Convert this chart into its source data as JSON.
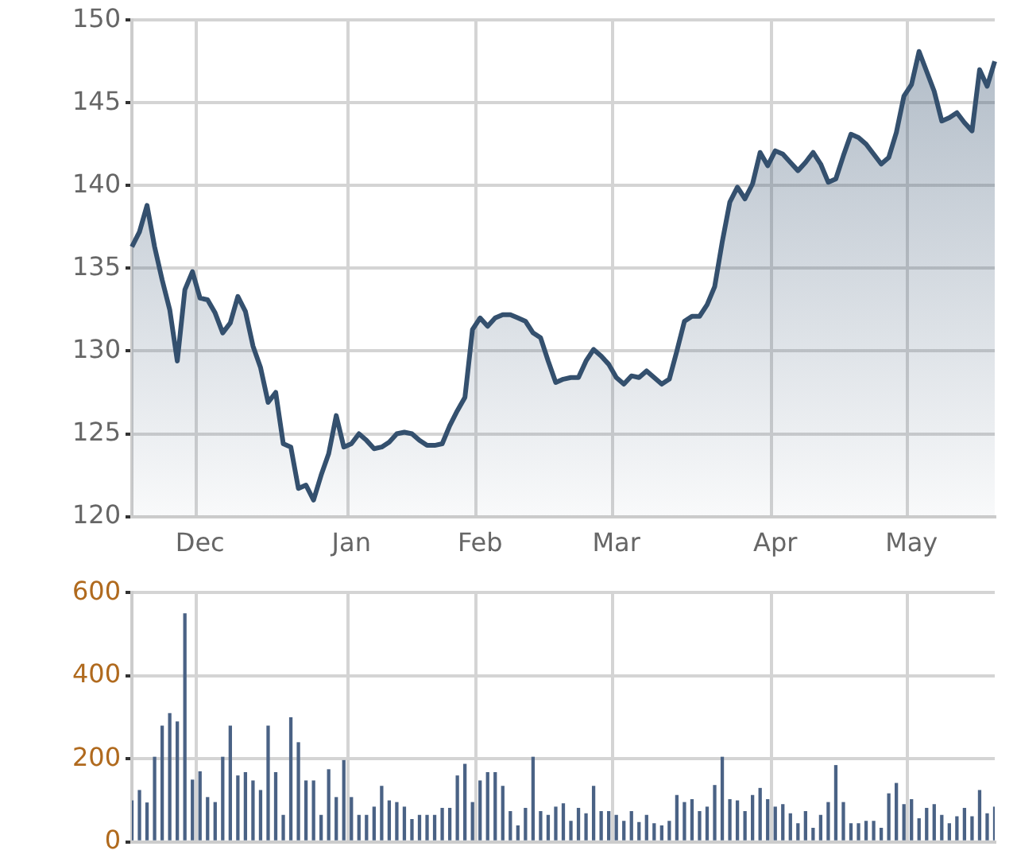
{
  "chart_data": [
    {
      "type": "area",
      "categories": [
        null,
        null,
        null,
        null,
        null,
        null,
        null,
        null,
        null,
        "Dec",
        null,
        null,
        null,
        null,
        null,
        null,
        null,
        null,
        null,
        null,
        null,
        null,
        null,
        null,
        null,
        null,
        null,
        null,
        null,
        "Jan",
        null,
        null,
        null,
        null,
        null,
        null,
        null,
        null,
        null,
        null,
        null,
        null,
        null,
        null,
        null,
        null,
        "Feb",
        null,
        null,
        null,
        null,
        null,
        null,
        null,
        null,
        null,
        null,
        null,
        null,
        null,
        null,
        null,
        null,
        null,
        "Mar",
        null,
        null,
        null,
        null,
        null,
        null,
        null,
        null,
        null,
        null,
        null,
        null,
        null,
        null,
        null,
        null,
        null,
        null,
        null,
        null,
        "Apr",
        null,
        null,
        null,
        null,
        null,
        null,
        null,
        null,
        null,
        null,
        null,
        null,
        null,
        null,
        null,
        null,
        null,
        "May",
        null,
        null,
        null,
        null,
        null,
        null,
        null,
        null,
        null,
        null,
        null
      ],
      "series": [
        {
          "color": "#34506e",
          "values": [
            136.3,
            137.2,
            138.8,
            136.3,
            134.3,
            132.5,
            129.4,
            133.7,
            134.8,
            133.2,
            133.1,
            132.3,
            131.1,
            131.7,
            133.3,
            132.4,
            130.3,
            129.0,
            126.9,
            127.5,
            124.4,
            124.2,
            121.7,
            121.9,
            121.0,
            122.5,
            123.8,
            126.1,
            124.2,
            124.4,
            125.0,
            124.6,
            124.1,
            124.2,
            124.5,
            125.0,
            125.1,
            125.0,
            124.6,
            124.3,
            124.3,
            124.4,
            125.5,
            126.4,
            127.2,
            131.3,
            132.0,
            131.5,
            132.0,
            132.2,
            132.2,
            132.0,
            131.8,
            131.1,
            130.8,
            129.4,
            128.1,
            128.3,
            128.4,
            128.4,
            129.4,
            130.1,
            129.7,
            129.2,
            128.4,
            128.0,
            128.5,
            128.4,
            128.8,
            128.4,
            128.0,
            128.3,
            130.0,
            131.8,
            132.1,
            132.1,
            132.8,
            133.9,
            136.6,
            139.0,
            139.9,
            139.2,
            140.1,
            142.0,
            141.2,
            142.1,
            141.9,
            141.4,
            140.9,
            141.4,
            142.0,
            141.3,
            140.2,
            140.4,
            141.8,
            143.1,
            142.9,
            142.5,
            141.9,
            141.3,
            141.7,
            143.2,
            145.4,
            146.1,
            148.1,
            146.9,
            145.7,
            143.9,
            144.1,
            144.4,
            143.8,
            143.3,
            147.0,
            146.0,
            147.5
          ]
        }
      ],
      "ylim": [
        120,
        150
      ],
      "yticks": [
        120,
        125,
        130,
        135,
        140,
        145,
        150
      ],
      "grid": true
    },
    {
      "type": "bar",
      "categories": [
        null,
        null,
        null,
        null,
        null,
        null,
        null,
        null,
        null,
        null,
        null,
        null,
        null,
        null,
        null,
        null,
        null,
        null,
        null,
        null,
        null,
        null,
        null,
        null,
        null,
        null,
        null,
        null,
        null,
        null,
        null,
        null,
        null,
        null,
        null,
        null,
        null,
        null,
        null,
        null,
        null,
        null,
        null,
        null,
        null,
        null,
        null,
        null,
        null,
        null,
        null,
        null,
        null,
        null,
        null,
        null,
        null,
        null,
        null,
        null,
        null,
        null,
        null,
        null,
        null,
        null,
        null,
        null,
        null,
        null,
        null,
        null,
        null,
        null,
        null,
        null,
        null,
        null,
        null,
        null,
        null,
        null,
        null,
        null,
        null,
        null,
        null,
        null,
        null,
        null,
        null,
        null,
        null,
        null,
        null,
        null,
        null,
        null,
        null,
        null,
        null,
        null,
        null,
        null,
        null,
        null,
        null,
        null,
        null,
        null,
        null,
        null,
        null,
        null,
        null
      ],
      "series": [
        {
          "color": "#4a6285",
          "values": [
            100,
            125,
            95,
            205,
            280,
            310,
            290,
            550,
            150,
            170,
            108,
            96,
            205,
            280,
            160,
            168,
            148,
            125,
            280,
            168,
            65,
            300,
            240,
            148,
            148,
            65,
            175,
            108,
            197,
            108,
            65,
            65,
            85,
            135,
            100,
            96,
            85,
            55,
            65,
            65,
            65,
            82,
            82,
            160,
            188,
            96,
            148,
            168,
            168,
            135,
            74,
            40,
            82,
            205,
            74,
            65,
            85,
            93,
            51,
            82,
            69,
            135,
            74,
            74,
            65,
            51,
            74,
            48,
            65,
            45,
            40,
            51,
            113,
            96,
            103,
            74,
            85,
            137,
            205,
            103,
            100,
            74,
            113,
            130,
            103,
            85,
            91,
            69,
            45,
            74,
            34,
            65,
            96,
            185,
            96,
            45,
            45,
            51,
            51,
            34,
            117,
            142,
            91,
            103,
            57,
            82,
            91,
            65,
            45,
            62,
            82,
            62,
            125,
            69,
            85
          ]
        }
      ],
      "ylim": [
        0,
        600
      ],
      "yticks": [
        0,
        200,
        400,
        600
      ],
      "grid": true,
      "tick_labels": "y"
    }
  ]
}
